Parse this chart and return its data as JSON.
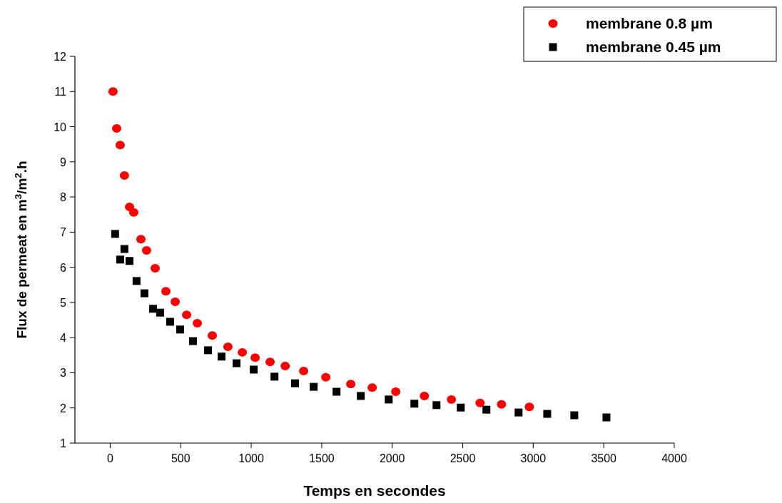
{
  "chart_data": {
    "type": "scatter",
    "xlabel": "Temps en secondes",
    "ylabel": "Flux de permeat en m$^{3}$/m$^{2}$.h",
    "xlim": [
      -250,
      4000
    ],
    "ylim": [
      1,
      12
    ],
    "xticks": [
      0,
      500,
      1000,
      1500,
      2000,
      2500,
      3000,
      3500,
      4000
    ],
    "yticks": [
      1,
      2,
      3,
      4,
      5,
      6,
      7,
      8,
      9,
      10,
      11,
      12
    ],
    "grid": false,
    "legend": "top right",
    "series": [
      {
        "name": "membrane 0.8 µm",
        "color": "#ff0000",
        "marker": "circle",
        "x": [
          20,
          46,
          71,
          101,
          137,
          167,
          218,
          258,
          319,
          395,
          461,
          542,
          618,
          724,
          835,
          937,
          1028,
          1134,
          1241,
          1372,
          1529,
          1706,
          1858,
          2025,
          2228,
          2420,
          2623,
          2775,
          2972
        ],
        "values": [
          11.0,
          9.95,
          9.48,
          8.61,
          7.72,
          7.56,
          6.8,
          6.48,
          5.97,
          5.32,
          5.02,
          4.65,
          4.41,
          4.06,
          3.74,
          3.58,
          3.43,
          3.31,
          3.19,
          3.05,
          2.87,
          2.68,
          2.58,
          2.46,
          2.34,
          2.24,
          2.14,
          2.1,
          2.03
        ]
      },
      {
        "name": "membrane 0.45 µm",
        "color": "#000000",
        "marker": "square",
        "x": [
          35,
          71,
          101,
          137,
          187,
          243,
          304,
          354,
          425,
          496,
          587,
          694,
          790,
          896,
          1018,
          1165,
          1311,
          1443,
          1605,
          1777,
          1975,
          2157,
          2314,
          2486,
          2668,
          2896,
          3099,
          3291,
          3519
        ],
        "values": [
          6.95,
          6.22,
          6.52,
          6.18,
          5.61,
          5.26,
          4.82,
          4.71,
          4.45,
          4.23,
          3.9,
          3.64,
          3.46,
          3.27,
          3.09,
          2.89,
          2.7,
          2.6,
          2.46,
          2.34,
          2.24,
          2.12,
          2.08,
          2.01,
          1.95,
          1.87,
          1.83,
          1.79,
          1.73
        ]
      }
    ]
  }
}
